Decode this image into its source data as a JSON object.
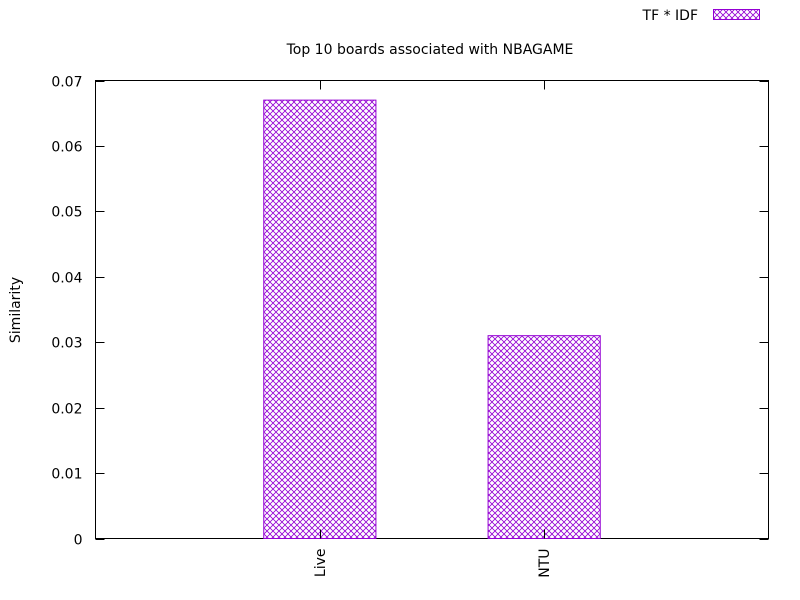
{
  "chart_data": {
    "type": "bar",
    "title": "Top 10 boards associated with NBAGAME",
    "xlabel": "",
    "ylabel": "Similarity",
    "categories": [
      "Live",
      "NTU"
    ],
    "series": [
      {
        "name": "TF * IDF",
        "values": [
          0.067,
          0.031
        ]
      }
    ],
    "ylim": [
      0,
      0.07
    ],
    "yticks": [
      "0",
      "0.01",
      "0.02",
      "0.03",
      "0.04",
      "0.05",
      "0.06",
      "0.07"
    ],
    "grid": false,
    "legend_position": "top-right",
    "bar_color": "#9400d3",
    "bar_pattern": "crosshatch"
  }
}
